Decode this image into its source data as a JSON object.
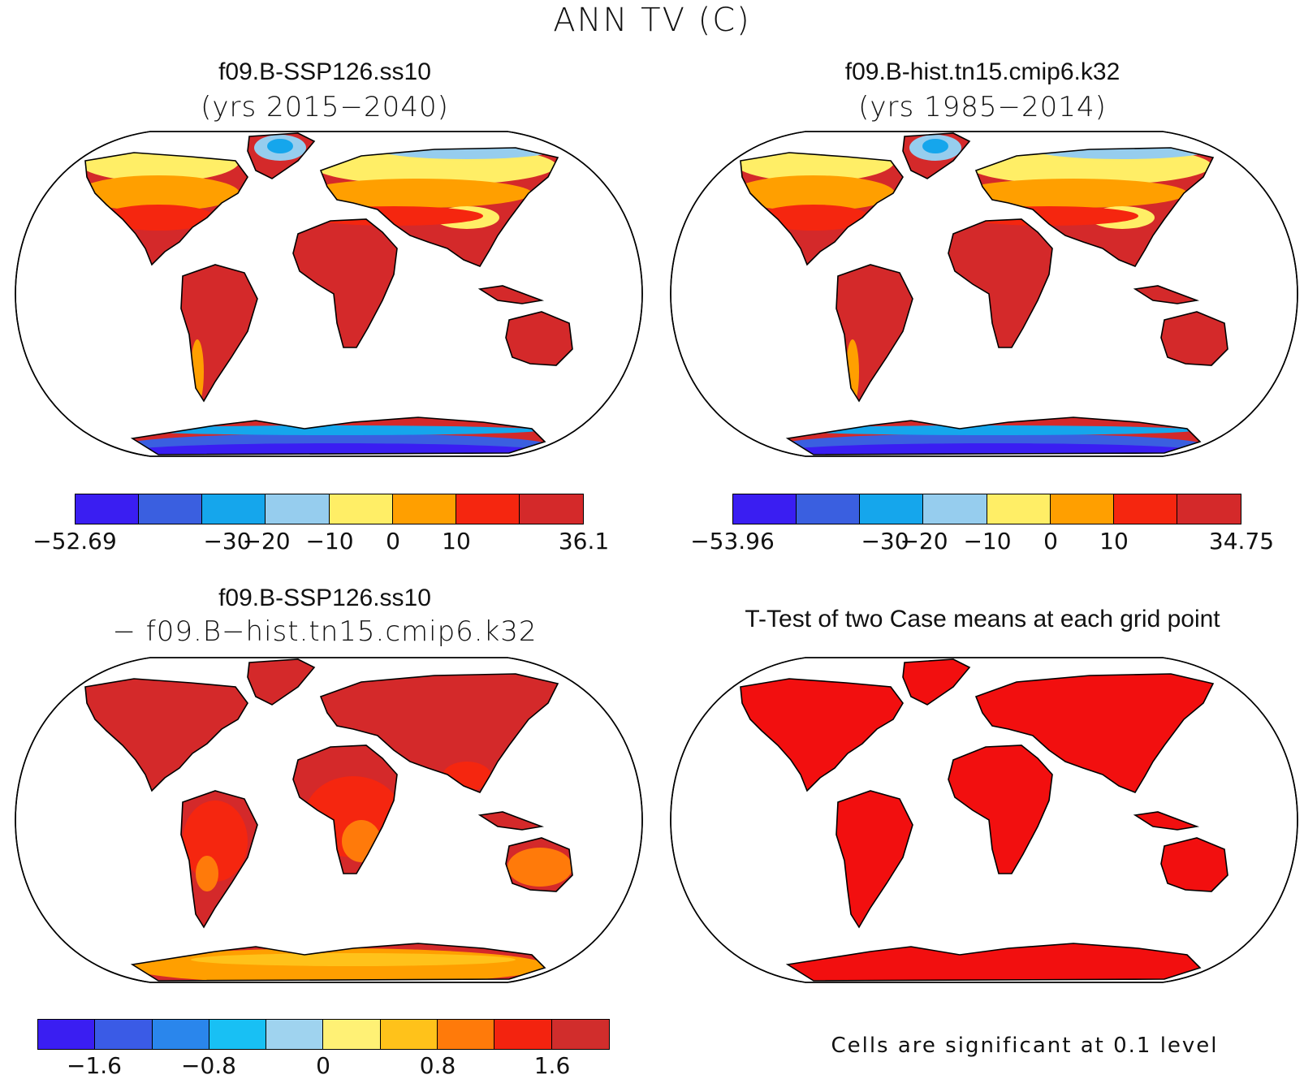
{
  "main_title": "ANN TV (C)",
  "panels": {
    "p1": {
      "title": "f09.B-SSP126.ss10",
      "subtitle": "(yrs 2015−2040)",
      "colorbar": {
        "colors": [
          "#3a1ef2",
          "#3a5fe0",
          "#15a6ec",
          "#96cdee",
          "#ffee66",
          "#ff9f00",
          "#f5260f",
          "#d4292a"
        ],
        "ticks": [
          "−52.69",
          "−30",
          "−20",
          "−10",
          "0",
          "10",
          "36.1"
        ]
      }
    },
    "p2": {
      "title": "f09.B-hist.tn15.cmip6.k32",
      "subtitle": "(yrs 1985−2014)",
      "colorbar": {
        "colors": [
          "#3a1ef2",
          "#3a5fe0",
          "#15a6ec",
          "#96cdee",
          "#ffee66",
          "#ff9f00",
          "#f5260f",
          "#d4292a"
        ],
        "ticks": [
          "−53.96",
          "−30",
          "−20",
          "−10",
          "0",
          "10",
          "34.75"
        ]
      }
    },
    "p3": {
      "title": "f09.B-SSP126.ss10",
      "subtitle": "− f09.B−hist.tn15.cmip6.k32",
      "colorbar": {
        "colors": [
          "#3a1ef2",
          "#3a5be6",
          "#2a86ec",
          "#18c0f4",
          "#9fd3ef",
          "#fff175",
          "#ffc21a",
          "#ff7a0a",
          "#f3230f",
          "#d12d2c"
        ],
        "ticks": [
          "−1.6",
          "−0.8",
          "0",
          "0.8",
          "1.6"
        ]
      }
    },
    "p4": {
      "title": "T-Test of two Case means at each grid point",
      "note": "Cells are significant at 0.1 level"
    }
  },
  "colors": {
    "land_cold": "#d4292a",
    "land_warm": "#f5260f",
    "ttest_red": "#f20f0f",
    "orange": "#ff9f00",
    "yellow": "#ffee66"
  }
}
